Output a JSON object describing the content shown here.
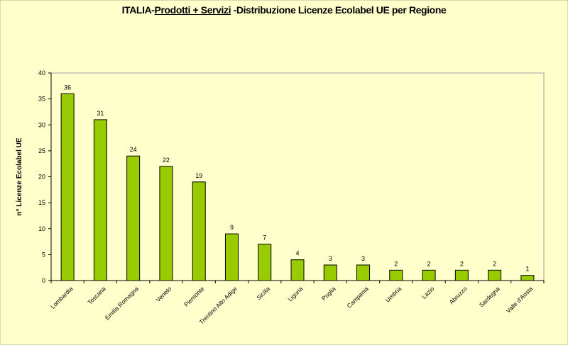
{
  "chart_data": {
    "type": "bar",
    "title_parts": [
      "ITALIA-",
      "Prodotti + Servizi",
      " -Distribuzione Licenze Ecolabel UE per Regione"
    ],
    "xlabel": "",
    "ylabel": "n° Licenze  Ecolabel  UE",
    "ylim": [
      0,
      40
    ],
    "yticks": [
      0,
      5,
      10,
      15,
      20,
      25,
      30,
      35,
      40
    ],
    "grid": false,
    "legend": "none",
    "categories": [
      "Lombardia",
      "Toscana",
      "Emilia Romagna",
      "Veneto",
      "Piemonte",
      "Trentino Alto Adige",
      "Sicilia",
      "Liguria",
      "Puglia",
      "Campania",
      "Umbria",
      "Lazio",
      "Abruzzo",
      "Sardegna",
      "Valle d'Aosta"
    ],
    "values": [
      36,
      31,
      24,
      22,
      19,
      9,
      7,
      4,
      3,
      3,
      2,
      2,
      2,
      2,
      1
    ],
    "data_labels": true,
    "colors": {
      "bar": "#99CC00",
      "bar_border": "#000000",
      "background": "#FFFFCC"
    }
  }
}
